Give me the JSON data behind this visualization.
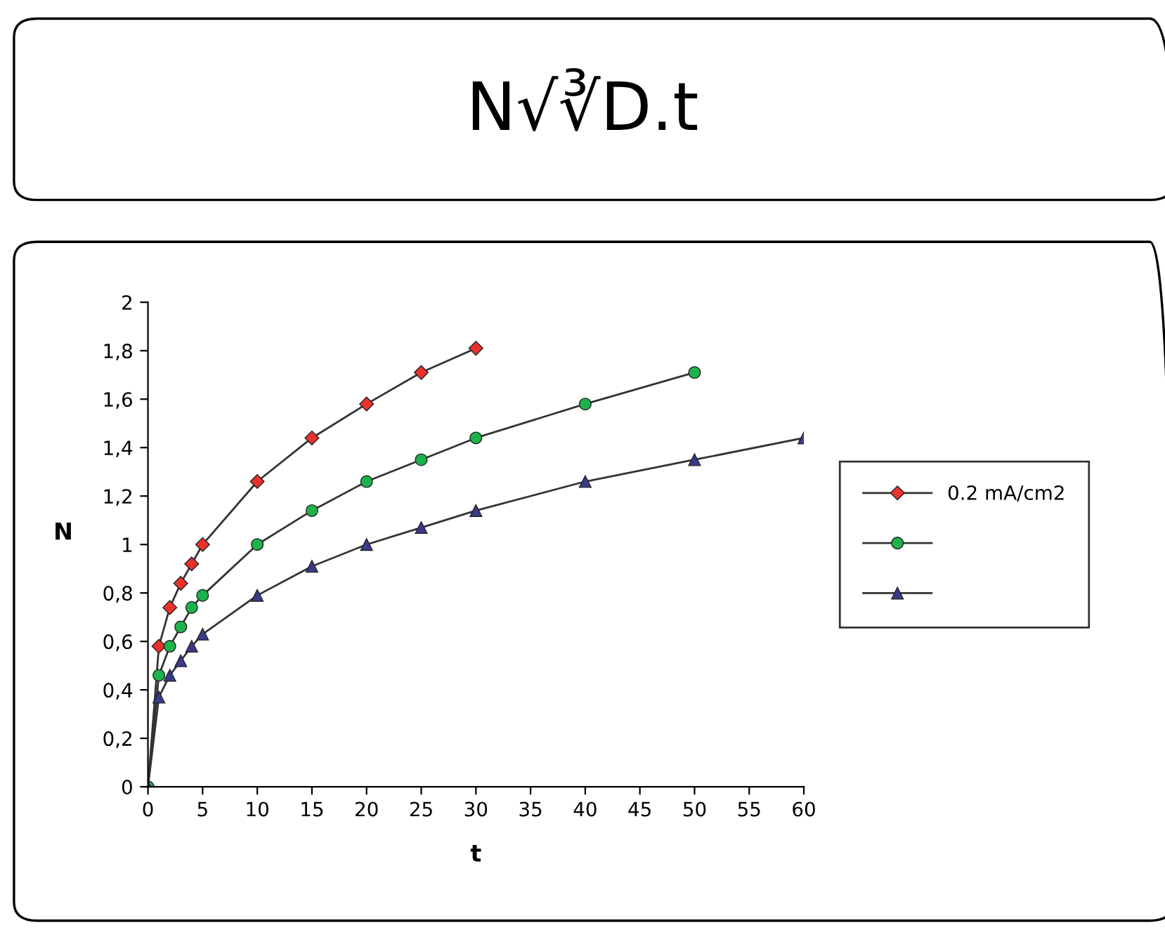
{
  "chart_data": {
    "type": "line",
    "title": "N√∛D.t",
    "xlabel": "t",
    "ylabel": "N",
    "series": [
      {
        "name": "0.2 mA/cm2",
        "color": "#e8322c",
        "marker": "diamond",
        "x": [
          0,
          1,
          2,
          3,
          4,
          5,
          10,
          15,
          20,
          25,
          30
        ],
        "values": [
          0,
          0.58,
          0.74,
          0.84,
          0.92,
          1.0,
          1.26,
          1.44,
          1.58,
          1.71,
          1.81
        ]
      },
      {
        "color": "#1db34a",
        "marker": "circle",
        "x": [
          0,
          1,
          2,
          3,
          4,
          5,
          10,
          15,
          20,
          25,
          30,
          40,
          50
        ],
        "values": [
          0,
          0.46,
          0.58,
          0.66,
          0.74,
          0.79,
          1.0,
          1.14,
          1.26,
          1.35,
          1.44,
          1.58,
          1.71
        ]
      },
      {
        "color": "#3a3a8c",
        "marker": "triangle",
        "x": [
          0,
          1,
          2,
          3,
          4,
          5,
          10,
          15,
          20,
          25,
          30,
          40,
          50,
          60
        ],
        "values": [
          0,
          0.37,
          0.46,
          0.52,
          0.58,
          0.63,
          0.79,
          0.91,
          1.0,
          1.07,
          1.14,
          1.26,
          1.35,
          1.44
        ]
      }
    ],
    "xlim": [
      0,
      60
    ],
    "xticks": [
      0,
      5,
      10,
      15,
      20,
      25,
      30,
      35,
      40,
      45,
      50,
      55,
      60
    ],
    "ylim": [
      0,
      2
    ],
    "yticks": [
      0,
      {
        "value": 0.2,
        "label": "0,2"
      },
      {
        "value": 0.4,
        "label": "0,4"
      },
      {
        "value": 0.6,
        "label": "0,6"
      },
      {
        "value": 0.8,
        "label": "0,8"
      },
      1,
      {
        "value": 1.2,
        "label": "1,2"
      },
      {
        "value": 1.4,
        "label": "1,4"
      },
      {
        "value": 1.6,
        "label": "1,6"
      },
      {
        "value": 1.8,
        "label": "1,8"
      },
      2
    ],
    "grid": false,
    "legend": "right",
    "line_style": "solid"
  }
}
